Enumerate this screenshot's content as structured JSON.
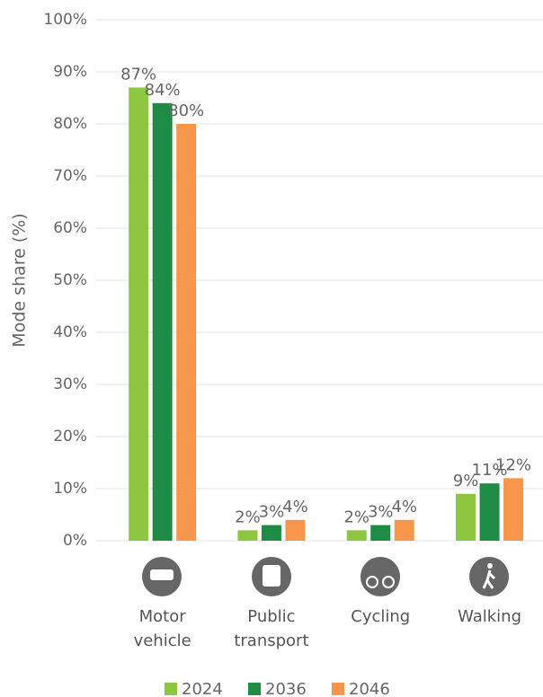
{
  "chart_data": {
    "type": "bar",
    "y_label": "Mode share (%)",
    "categories": [
      "Motor vehicle",
      "Public transport",
      "Cycling",
      "Walking"
    ],
    "series": [
      {
        "name": "2024",
        "color": "#8dc63f",
        "values": [
          87,
          2,
          2,
          9
        ],
        "value_labels": [
          "87%",
          "2%",
          "2%",
          "9%"
        ]
      },
      {
        "name": "2036",
        "color": "#1e8c45",
        "values": [
          84,
          3,
          3,
          11
        ],
        "value_labels": [
          "84%",
          "3%",
          "3%",
          "11%"
        ]
      },
      {
        "name": "2046",
        "color": "#f7964a",
        "values": [
          80,
          4,
          4,
          12
        ],
        "value_labels": [
          "80%",
          "4%",
          "4%",
          "12%"
        ]
      }
    ],
    "ylim": [
      0,
      100
    ],
    "yticks": [
      {
        "value": 0,
        "label": "0%"
      },
      {
        "value": 10,
        "label": "10%"
      },
      {
        "value": 20,
        "label": "20%"
      },
      {
        "value": 30,
        "label": "30%"
      },
      {
        "value": 40,
        "label": "40%"
      },
      {
        "value": 50,
        "label": "50%"
      },
      {
        "value": 60,
        "label": "60%"
      },
      {
        "value": 70,
        "label": "70%"
      },
      {
        "value": 80,
        "label": "80%"
      },
      {
        "value": 90,
        "label": "90%"
      },
      {
        "value": 100,
        "label": "100%"
      }
    ],
    "grid": true,
    "legend": "bottom"
  }
}
